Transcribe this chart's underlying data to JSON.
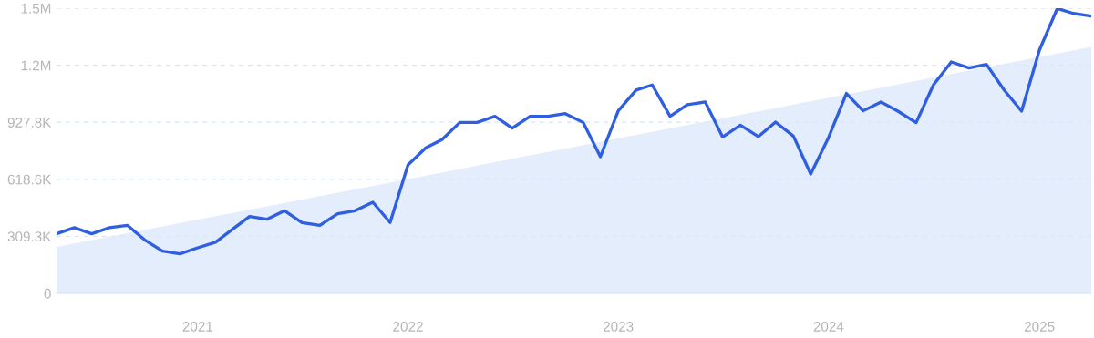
{
  "chart_data": {
    "type": "line",
    "x": [
      "2020-05",
      "2020-06",
      "2020-07",
      "2020-08",
      "2020-09",
      "2020-10",
      "2020-11",
      "2020-12",
      "2021-01",
      "2021-02",
      "2021-03",
      "2021-04",
      "2021-05",
      "2021-06",
      "2021-07",
      "2021-08",
      "2021-09",
      "2021-10",
      "2021-11",
      "2021-12",
      "2022-01",
      "2022-02",
      "2022-03",
      "2022-04",
      "2022-05",
      "2022-06",
      "2022-07",
      "2022-08",
      "2022-09",
      "2022-10",
      "2022-11",
      "2022-12",
      "2023-01",
      "2023-02",
      "2023-03",
      "2023-04",
      "2023-05",
      "2023-06",
      "2023-07",
      "2023-08",
      "2023-09",
      "2023-10",
      "2023-11",
      "2023-12",
      "2024-01",
      "2024-02",
      "2024-03",
      "2024-04",
      "2024-05",
      "2024-06",
      "2024-07",
      "2024-08",
      "2024-09",
      "2024-10",
      "2024-11",
      "2024-12",
      "2025-01",
      "2025-02",
      "2025-03",
      "2025-04"
    ],
    "series": [
      {
        "type": "area",
        "color": "#dce9fb",
        "x": [
          "2020-05",
          "2025-04"
        ],
        "values": [
          252000,
          1336000
        ]
      },
      {
        "color": "#2f5fe0",
        "values": [
          323000,
          356000,
          323000,
          356000,
          369000,
          290000,
          229000,
          214000,
          247000,
          277000,
          344000,
          417000,
          402000,
          448000,
          384000,
          369000,
          432000,
          448000,
          494000,
          384000,
          697000,
          789000,
          834000,
          927000,
          927000,
          960000,
          896000,
          960000,
          960000,
          975000,
          927000,
          741000,
          990000,
          1102000,
          1130000,
          960000,
          1023000,
          1038000,
          848000,
          912000,
          850000,
          929000,
          853000,
          647000,
          845000,
          1084000,
          990000,
          1038000,
          987000,
          926000,
          1130000,
          1255000,
          1222000,
          1242000,
          1102000,
          988000,
          1319000,
          1545000,
          1518000,
          1504000
        ]
      }
    ],
    "xlim": [
      "2020-05",
      "2025-04"
    ],
    "xticks": [
      "2021",
      "2022",
      "2023",
      "2024",
      "2025"
    ],
    "ylim": [
      0,
      1546400
    ],
    "yticks": [
      0,
      {
        "value": 309300,
        "label": "309.3K"
      },
      {
        "value": 618600,
        "label": "618.6K"
      },
      {
        "value": 927800,
        "label": "927.8K"
      },
      {
        "value": 1237100,
        "label": "1.2M"
      },
      {
        "value": 1546400,
        "label": "1.5M"
      }
    ],
    "grid": "y"
  }
}
